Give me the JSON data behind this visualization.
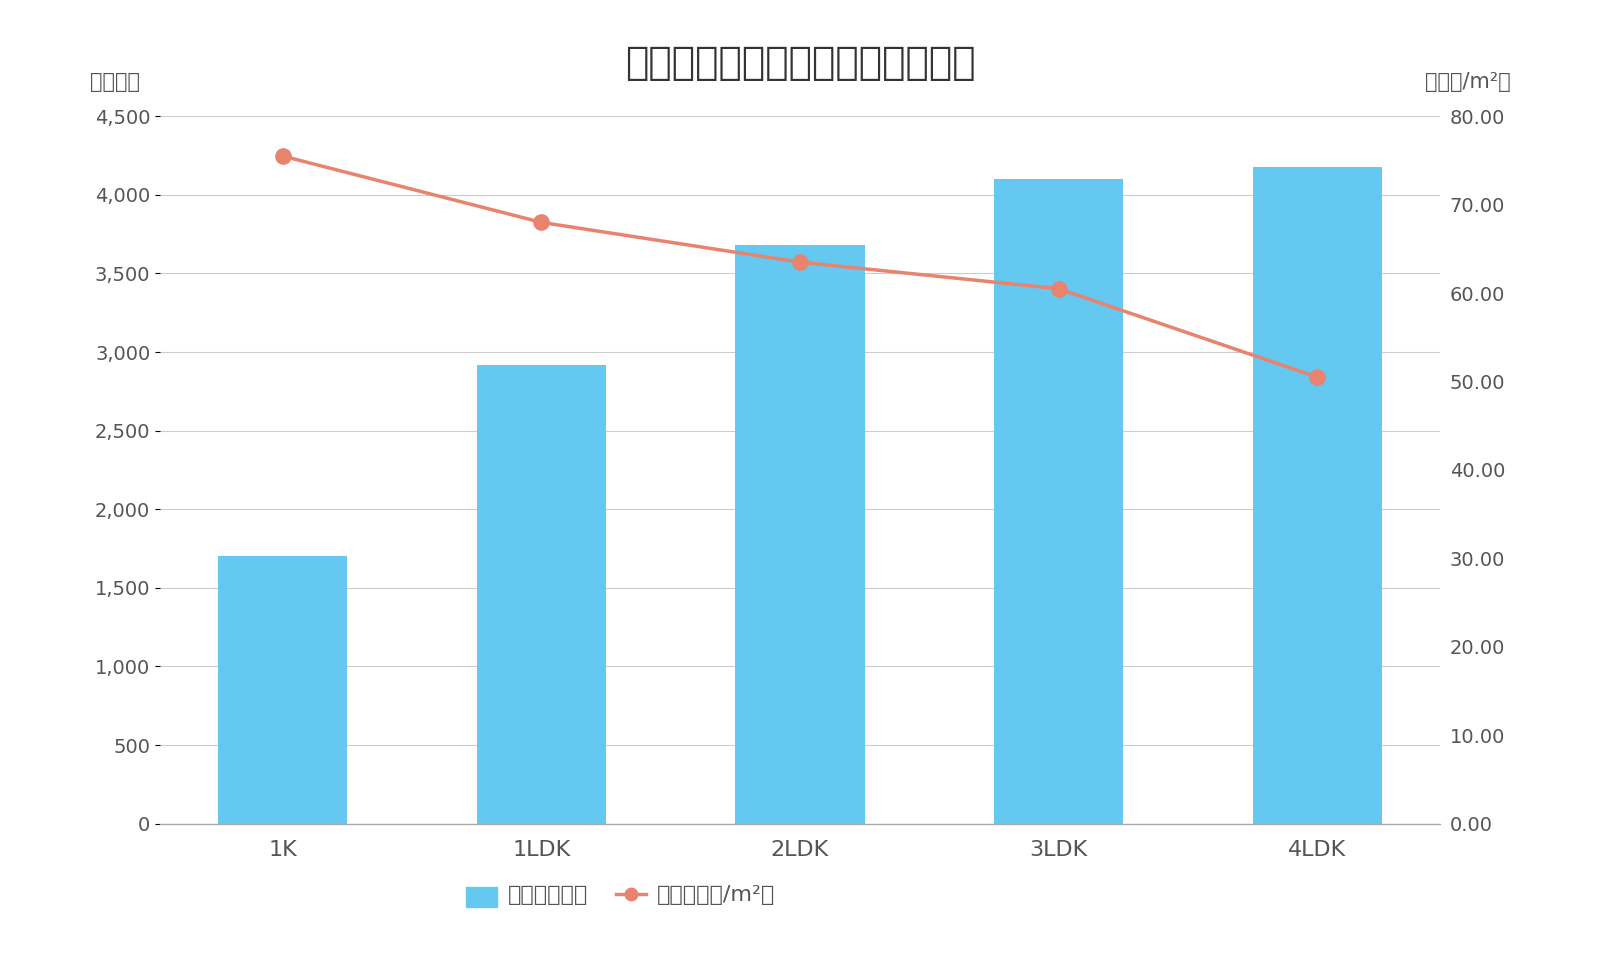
{
  "title": "江戸川区間取り別マンション価格",
  "categories": [
    "1K",
    "1LDK",
    "2LDK",
    "3LDK",
    "4LDK"
  ],
  "bar_values": [
    1700,
    2920,
    3680,
    4100,
    4180
  ],
  "line_values": [
    75.5,
    68.0,
    63.5,
    60.5,
    50.5
  ],
  "bar_color": "#64C8F0",
  "line_color": "#E8836E",
  "ylabel_left": "（万円）",
  "ylabel_right": "（万円/m²）",
  "ylim_left": [
    0,
    4500
  ],
  "ylim_right": [
    0.0,
    80.0
  ],
  "yticks_left": [
    0,
    500,
    1000,
    1500,
    2000,
    2500,
    3000,
    3500,
    4000,
    4500
  ],
  "yticks_right": [
    0.0,
    10.0,
    20.0,
    30.0,
    40.0,
    50.0,
    60.0,
    70.0,
    80.0
  ],
  "legend_bar_label": "価格（万円）",
  "legend_line_label": "単価（万円/m²）",
  "background_color": "#ffffff",
  "title_fontsize": 28,
  "axis_label_fontsize": 15,
  "tick_fontsize": 14,
  "legend_fontsize": 16,
  "text_color": "#555555"
}
